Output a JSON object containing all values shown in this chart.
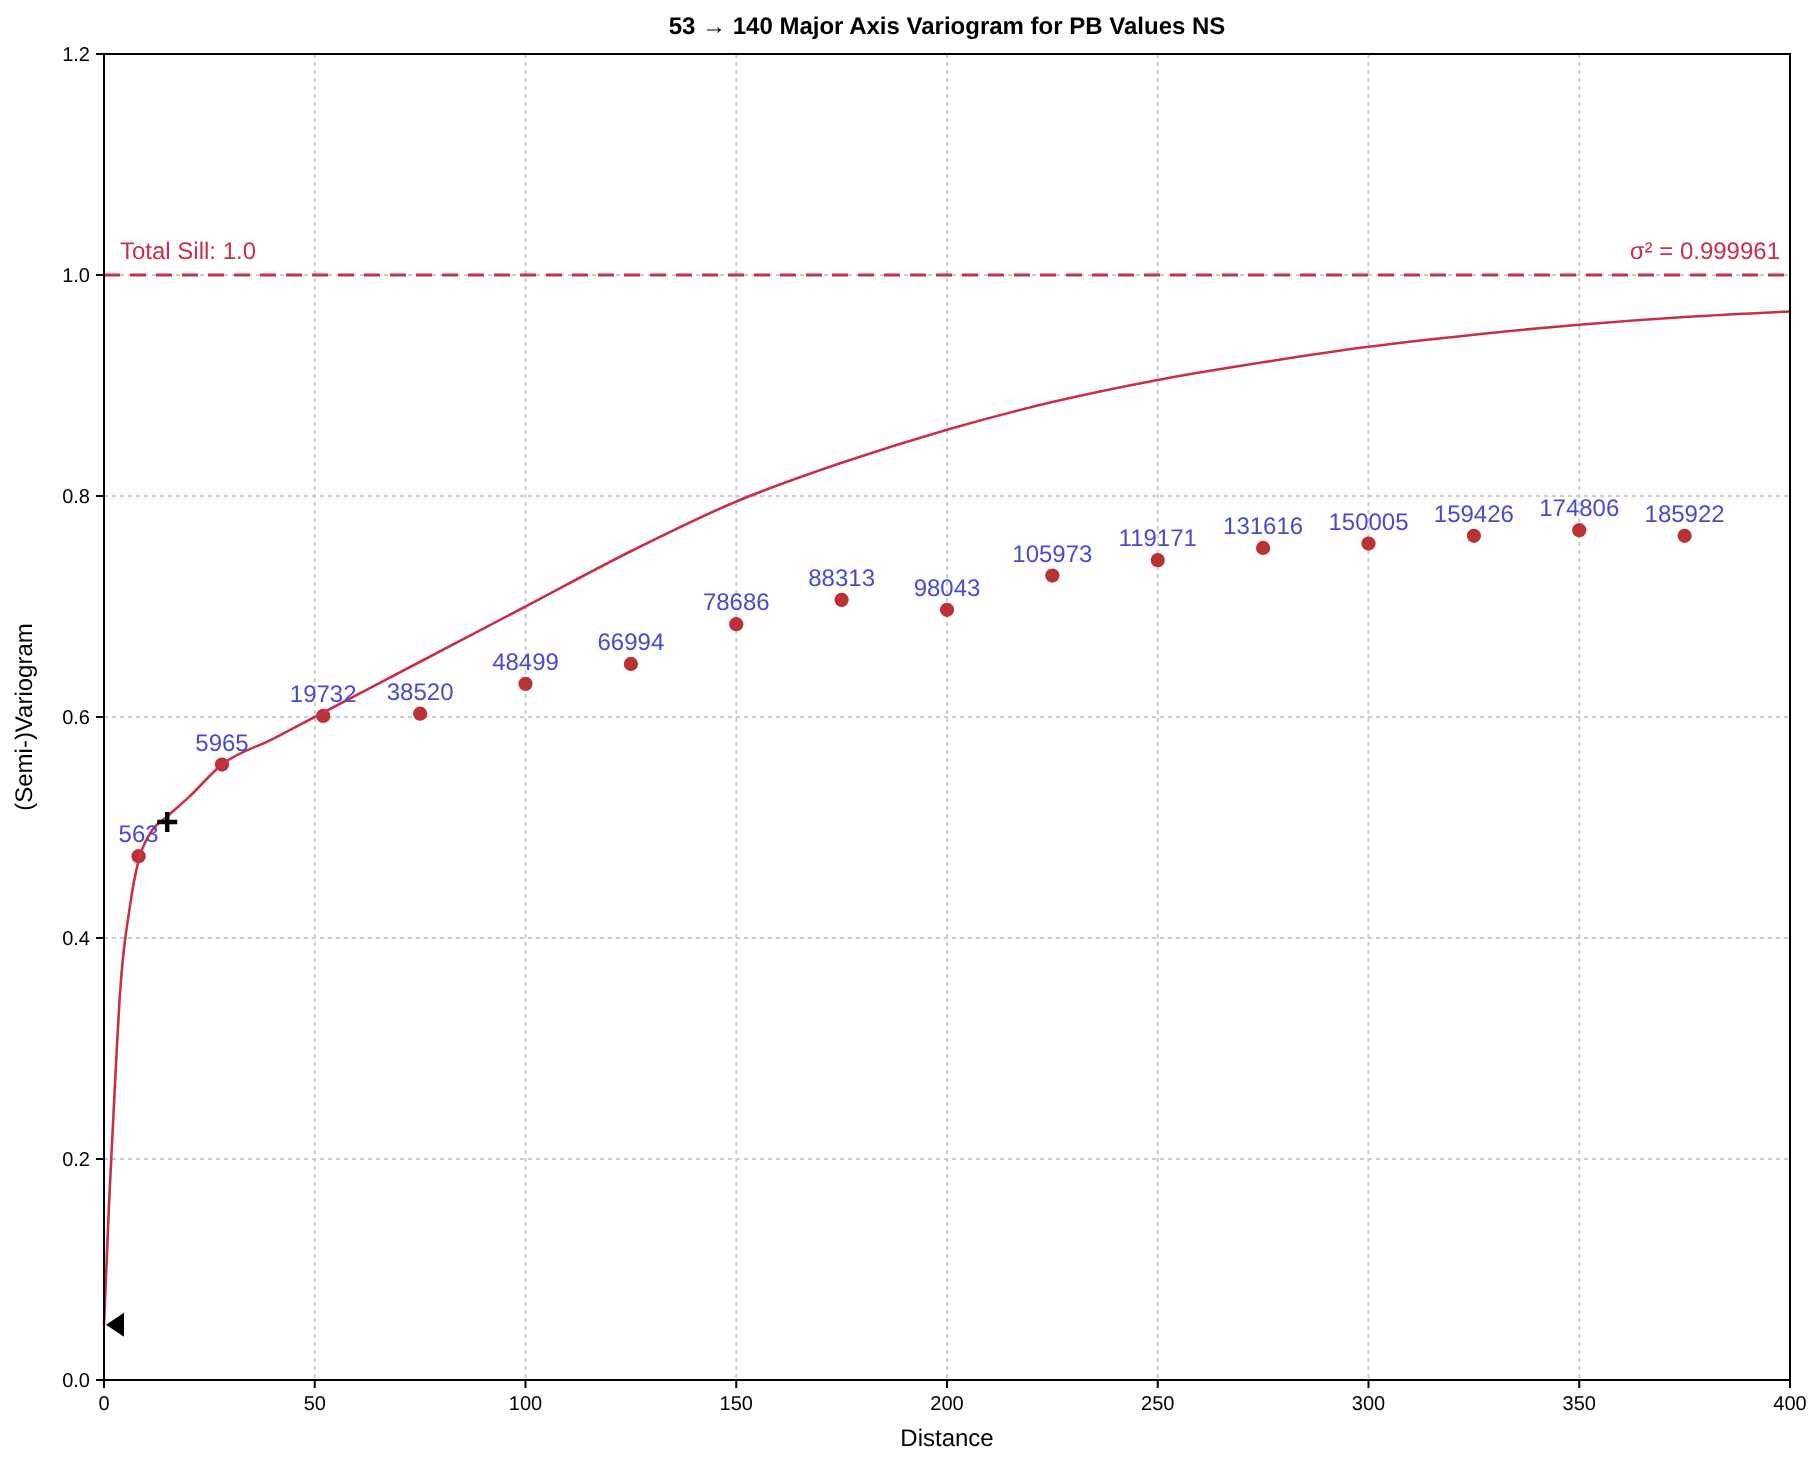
{
  "chart_data": {
    "type": "scatter",
    "title": "53 → 140 Major Axis Variogram for PB Values NS",
    "xlabel": "Distance",
    "ylabel": "(Semi-)Variogram",
    "x": [
      8.2,
      28,
      52,
      75,
      100,
      125,
      150,
      175,
      200,
      225,
      250,
      275,
      300,
      325,
      350,
      375
    ],
    "series": [
      {
        "color": "#b83236",
        "marker": "circle",
        "values": [
          0.474,
          0.557,
          0.601,
          0.603,
          0.63,
          0.648,
          0.684,
          0.706,
          0.697,
          0.728,
          0.742,
          0.753,
          0.757,
          0.764,
          0.769,
          0.764
        ]
      },
      {
        "type": "line",
        "marker": "none",
        "color": "#c8304a",
        "x": [
          0,
          1.2,
          2.5,
          3.8,
          6.2,
          8.2,
          11,
          15,
          20,
          28,
          40,
          50,
          75,
          100,
          125,
          150,
          175,
          200,
          225,
          250,
          275,
          300,
          325,
          350,
          375,
          400
        ],
        "values": [
          0.05,
          0.16,
          0.26,
          0.35,
          0.43,
          0.47,
          0.495,
          0.51,
          0.527,
          0.557,
          0.58,
          0.6,
          0.65,
          0.7,
          0.75,
          0.795,
          0.83,
          0.86,
          0.885,
          0.905,
          0.921,
          0.935,
          0.946,
          0.955,
          0.962,
          0.967
        ]
      }
    ],
    "annotations": [
      {
        "text": "563",
        "x": 8.2,
        "y": 0.474
      },
      {
        "text": "5965",
        "x": 28,
        "y": 0.557
      },
      {
        "text": "19732",
        "x": 52,
        "y": 0.601
      },
      {
        "text": "38520",
        "x": 75,
        "y": 0.603
      },
      {
        "text": "48499",
        "x": 100,
        "y": 0.63
      },
      {
        "text": "66994",
        "x": 125,
        "y": 0.648
      },
      {
        "text": "78686",
        "x": 150,
        "y": 0.684
      },
      {
        "text": "88313",
        "x": 175,
        "y": 0.706
      },
      {
        "text": "98043",
        "x": 200,
        "y": 0.697
      },
      {
        "text": "105973",
        "x": 225,
        "y": 0.728
      },
      {
        "text": "119171",
        "x": 250,
        "y": 0.742
      },
      {
        "text": "131616",
        "x": 275,
        "y": 0.753
      },
      {
        "text": "150005",
        "x": 300,
        "y": 0.757
      },
      {
        "text": "159426",
        "x": 325,
        "y": 0.764
      },
      {
        "text": "174806",
        "x": 350,
        "y": 0.769
      },
      {
        "text": "185922",
        "x": 375,
        "y": 0.764
      },
      {
        "text": "σ² = 0.999961",
        "x": 400,
        "y": 1.0
      }
    ],
    "ref_lines": [
      {
        "axis": "y",
        "value": 1.0,
        "label": "Total Sill: 1.0",
        "color": "#c8304a",
        "line_style": "dashed"
      }
    ],
    "xlim": [
      0,
      400
    ],
    "xticks": [
      0,
      50,
      100,
      150,
      200,
      250,
      300,
      350,
      400
    ],
    "ylim": [
      0,
      1.2
    ],
    "yticks": [
      {
        "value": 0,
        "label": "0.0"
      },
      {
        "value": 0.2,
        "label": "0.2"
      },
      {
        "value": 0.4,
        "label": "0.4"
      },
      {
        "value": 0.6,
        "label": "0.6"
      },
      {
        "value": 0.8,
        "label": "0.8"
      },
      {
        "value": 1.0,
        "label": "1.0"
      },
      {
        "value": 1.2,
        "label": "1.2"
      }
    ],
    "grid": true,
    "line_style": "solid"
  }
}
